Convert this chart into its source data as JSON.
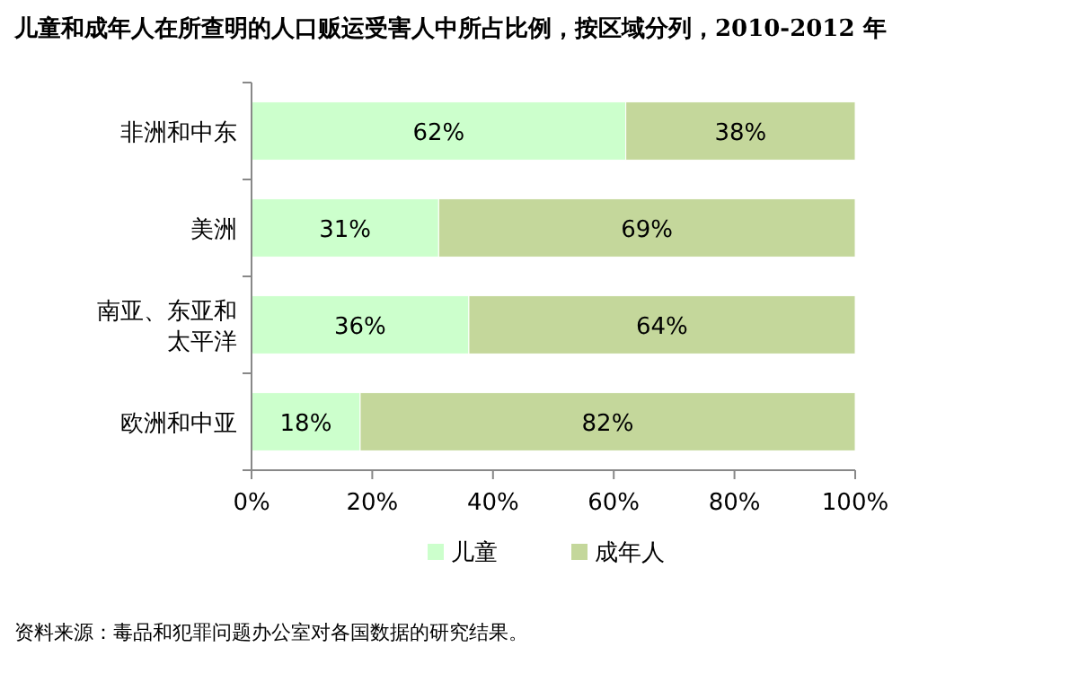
{
  "chart_data": {
    "type": "bar",
    "orientation": "horizontal",
    "stacked": true,
    "title": "儿童和成年人在所查明的人口贩运受害人中所占比例，按区域分列，2010-2012 年",
    "categories": [
      "非洲和中东",
      "美洲",
      "南亚、东亚和太平洋",
      "欧洲和中亚"
    ],
    "series": [
      {
        "name": "儿童",
        "color": "#ccffcc",
        "values": [
          62,
          31,
          36,
          18
        ],
        "value_labels": [
          "62%",
          "31%",
          "36%",
          "18%"
        ]
      },
      {
        "name": "成年人",
        "color": "#c4d79b",
        "values": [
          38,
          69,
          64,
          82
        ],
        "value_labels": [
          "38%",
          "69%",
          "64%",
          "82%"
        ]
      }
    ],
    "xlim": [
      0,
      100
    ],
    "xticks": [
      {
        "value": 0,
        "label": "0%"
      },
      {
        "value": 20,
        "label": "20%"
      },
      {
        "value": 40,
        "label": "40%"
      },
      {
        "value": 60,
        "label": "60%"
      },
      {
        "value": 80,
        "label": "80%"
      },
      {
        "value": 100,
        "label": "100%"
      }
    ],
    "grid": false,
    "legend": "bottom",
    "annotations": [
      "资料来源：毒品和犯罪问题办公室对各国数据的研究结果。"
    ]
  }
}
